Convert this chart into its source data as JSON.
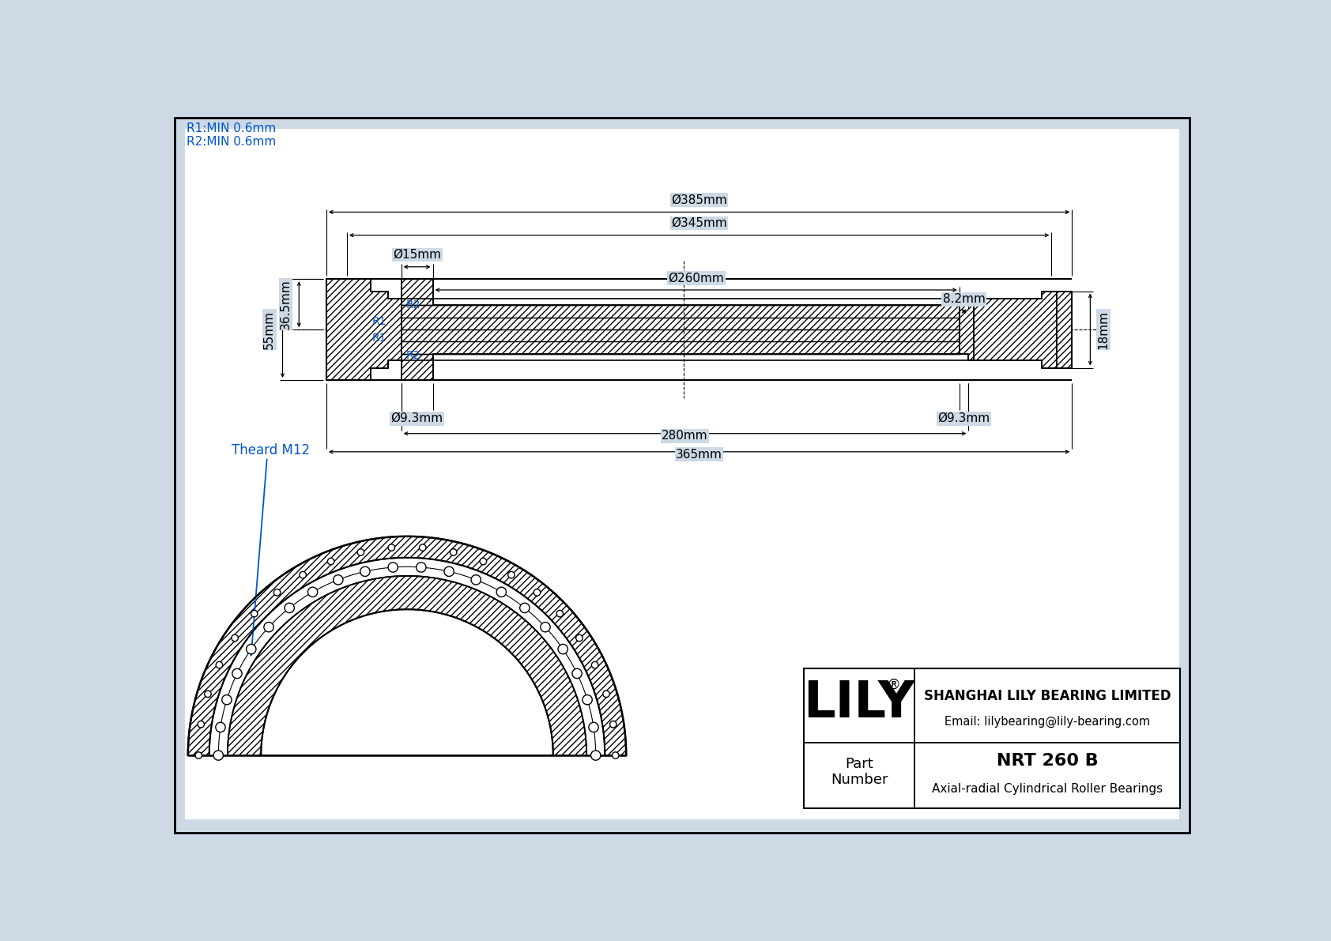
{
  "bg_color": "#cdd9e5",
  "line_color": "#000000",
  "blue_color": "#0055cc",
  "r1_label": "R1:MIN 0.6mm",
  "r2_label": "R2:MIN 0.6mm",
  "thread_label": "Theard M12",
  "company": "SHANGHAI LILY BEARING LIMITED",
  "email": "Email: lilybearing@lily-bearing.com",
  "part_label": "Part\nNumber",
  "title": "NRT 260 B",
  "subtitle": "Axial-radial Cylindrical Roller Bearings",
  "dim_d385": "Ø385mm",
  "dim_d345": "Ø345mm",
  "dim_d260": "Ø260mm",
  "dim_d15": "Ø15mm",
  "dim_d93L": "Ø9.3mm",
  "dim_d93R": "Ø9.3mm",
  "dim_365": "365mm",
  "dim_280": "280mm",
  "dim_36_5": "36.5mm",
  "dim_55": "55mm",
  "dim_18": "18mm",
  "dim_8_2": "8.2mm"
}
